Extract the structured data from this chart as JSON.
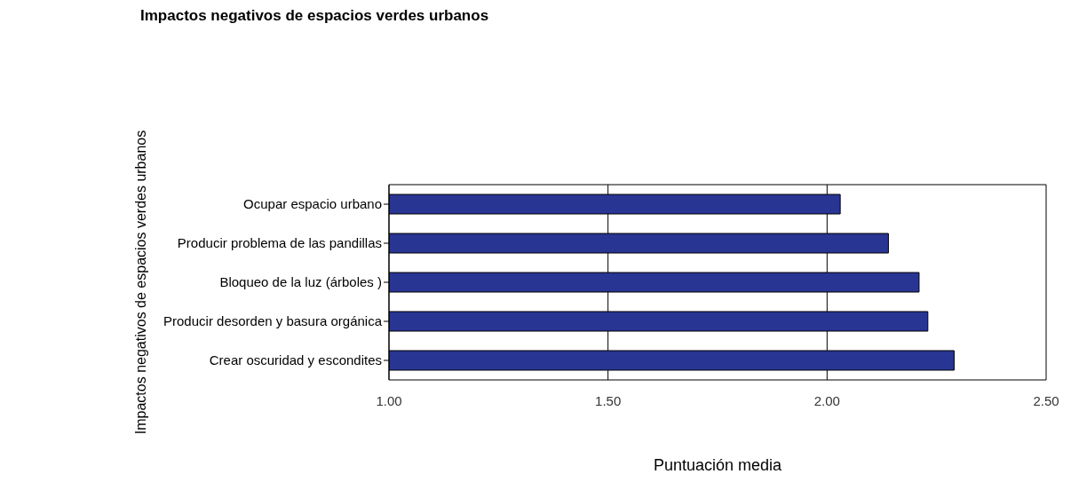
{
  "chart_data": {
    "type": "bar",
    "orientation": "horizontal",
    "title": "Impactos negativos de espacios verdes urbanos",
    "xlabel": "Puntuación media",
    "ylabel": "Impactos negativos de espacios verdes urbanos",
    "categories": [
      "Ocupar espacio urbano",
      "Producir problema de las pandillas",
      "Bloqueo de la luz (árboles )",
      "Producir desorden y basura orgánica",
      "Crear oscuridad y escondites"
    ],
    "values": [
      2.03,
      2.14,
      2.21,
      2.23,
      2.29
    ],
    "color": "#283593",
    "xlim": [
      1,
      2.5
    ],
    "xticks": [
      {
        "value": 1,
        "label": "1.00"
      },
      {
        "value": 1.5,
        "label": "1.50"
      },
      {
        "value": 2,
        "label": "2.00"
      },
      {
        "value": 2.5,
        "label": "2.50"
      }
    ],
    "grid": "x",
    "legend": false
  }
}
